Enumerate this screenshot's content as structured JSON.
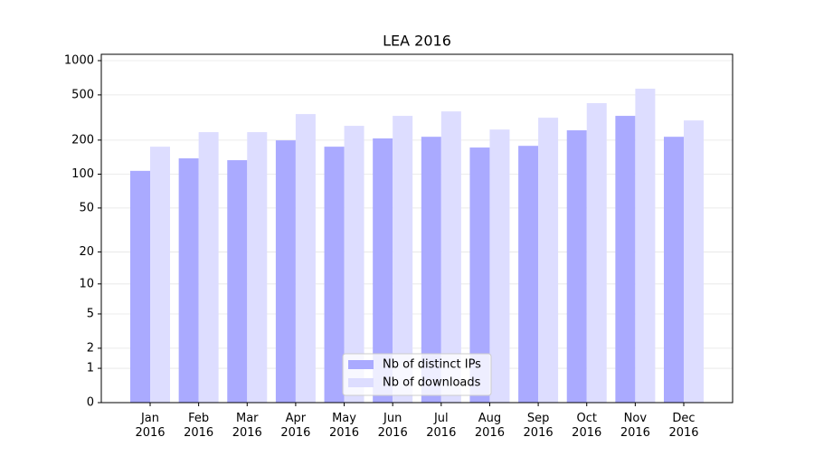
{
  "chart_data": {
    "type": "bar",
    "title": "LEA 2016",
    "scale": "log1p",
    "categories": [
      "Jan\n2016",
      "Feb\n2016",
      "Mar\n2016",
      "Apr\n2016",
      "May\n2016",
      "Jun\n2016",
      "Jul\n2016",
      "Aug\n2016",
      "Sep\n2016",
      "Oct\n2016",
      "Nov\n2016",
      "Dec\n2016"
    ],
    "series": [
      {
        "name": "Nb of distinct IPs",
        "color": "#aaaaff",
        "values": [
          107,
          138,
          133,
          199,
          175,
          207,
          214,
          172,
          178,
          244,
          327,
          214
        ]
      },
      {
        "name": "Nb of downloads",
        "color": "#ddddff",
        "values": [
          175,
          235,
          235,
          339,
          267,
          327,
          358,
          248,
          315,
          423,
          567,
          298
        ]
      }
    ],
    "ylim": [
      0,
      1137
    ],
    "yticks": [
      0,
      1,
      2,
      5,
      10,
      20,
      50,
      100,
      200,
      500,
      1000
    ],
    "grid": true,
    "legend": "lower center"
  }
}
